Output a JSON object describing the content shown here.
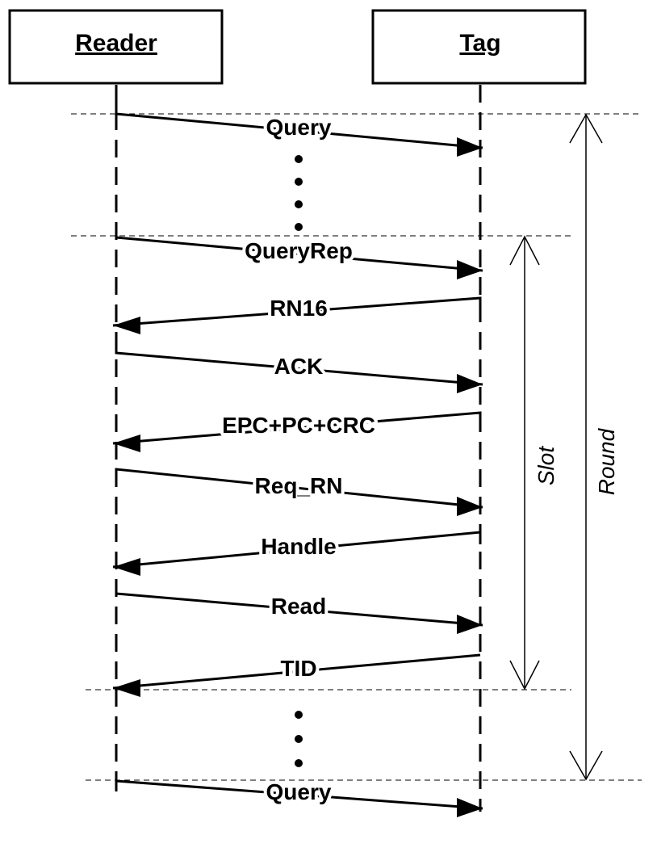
{
  "actors": {
    "reader": "Reader",
    "tag": "Tag"
  },
  "messages": [
    {
      "label": "Query",
      "direction": "to-tag"
    },
    {
      "label": "QueryRep",
      "direction": "to-tag"
    },
    {
      "label": "RN16",
      "direction": "to-reader"
    },
    {
      "label": "ACK",
      "direction": "to-tag"
    },
    {
      "label": "EPC+PC+CRC",
      "direction": "to-reader"
    },
    {
      "label": "Req_RN",
      "direction": "to-tag"
    },
    {
      "label": "Handle",
      "direction": "to-reader"
    },
    {
      "label": "Read",
      "direction": "to-tag"
    },
    {
      "label": "TID",
      "direction": "to-reader"
    },
    {
      "label": "Query",
      "direction": "to-tag"
    }
  ],
  "spans": {
    "slot": "Slot",
    "round": "Round"
  }
}
